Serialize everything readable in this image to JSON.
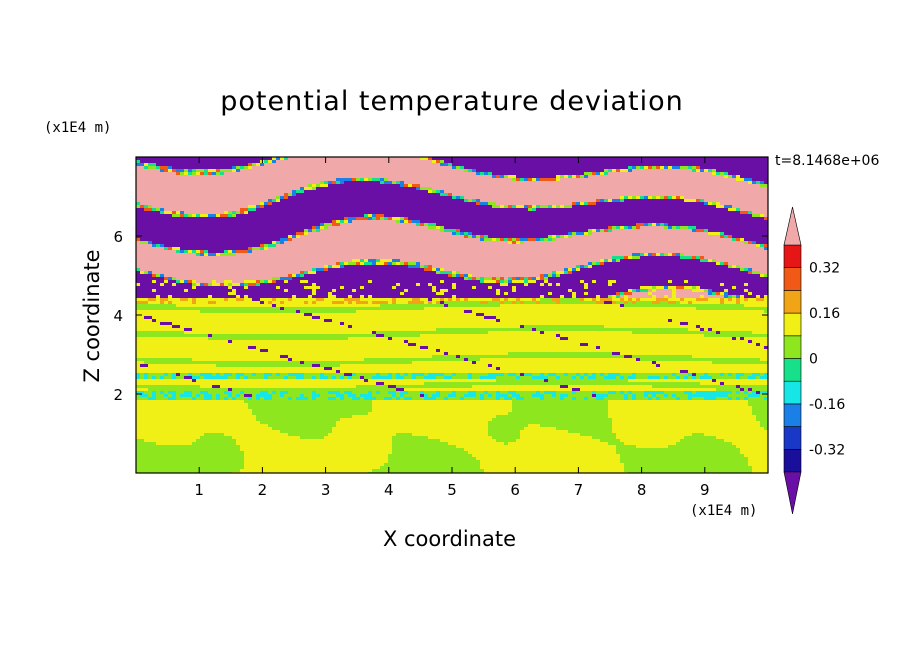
{
  "figure": {
    "title": "potential temperature deviation",
    "time_label": "t=8.1468e+06",
    "x_unit_label": "(x1E4 m)",
    "y_unit_label": "(x1E4 m)"
  },
  "chart_data": {
    "type": "heatmap",
    "title": "potential temperature deviation",
    "xlabel": "X coordinate",
    "ylabel": "Z coordinate",
    "xlim": [
      0,
      10
    ],
    "ylim": [
      0,
      8
    ],
    "x_ticks": [
      1,
      2,
      3,
      4,
      5,
      6,
      7,
      8,
      9
    ],
    "y_ticks": [
      2,
      4,
      6
    ],
    "annotation": "t=8.1468e+06",
    "colorbar": {
      "levels": [
        -0.4,
        -0.32,
        -0.24,
        -0.16,
        -0.08,
        0,
        0.08,
        0.16,
        0.24,
        0.32,
        0.4
      ],
      "tick_labels": [
        "0.32",
        "0.16",
        "0",
        "-0.16",
        "-0.32"
      ],
      "tick_values": [
        0.32,
        0.16,
        0,
        -0.16,
        -0.32
      ],
      "colors": [
        "#6a0fa6",
        "#1a0f9a",
        "#1a38c8",
        "#1a7fe6",
        "#16e6e6",
        "#16e08a",
        "#8ee61e",
        "#f0f016",
        "#f0a416",
        "#f05a16",
        "#e61616",
        "#f0a8a8"
      ],
      "extend": "both"
    },
    "regions": [
      {
        "z_range": [
          0,
          1.9
        ],
        "dominant": "0",
        "description_values": [
          0,
          0.08
        ]
      },
      {
        "z_range": [
          1.9,
          4.4
        ],
        "dominant": "0.08",
        "description_values": [
          0.08,
          -0.08
        ]
      },
      {
        "z_range": [
          4.4,
          8
        ],
        "dominant": "alternating -0.4 / 0.4",
        "description_values": [
          -0.4,
          0.4
        ]
      }
    ]
  },
  "colors": {
    "purple": "#6a0fa6",
    "pink": "#f0a8a8",
    "green": "#8ee61e",
    "seagreen": "#16e08a"
  }
}
